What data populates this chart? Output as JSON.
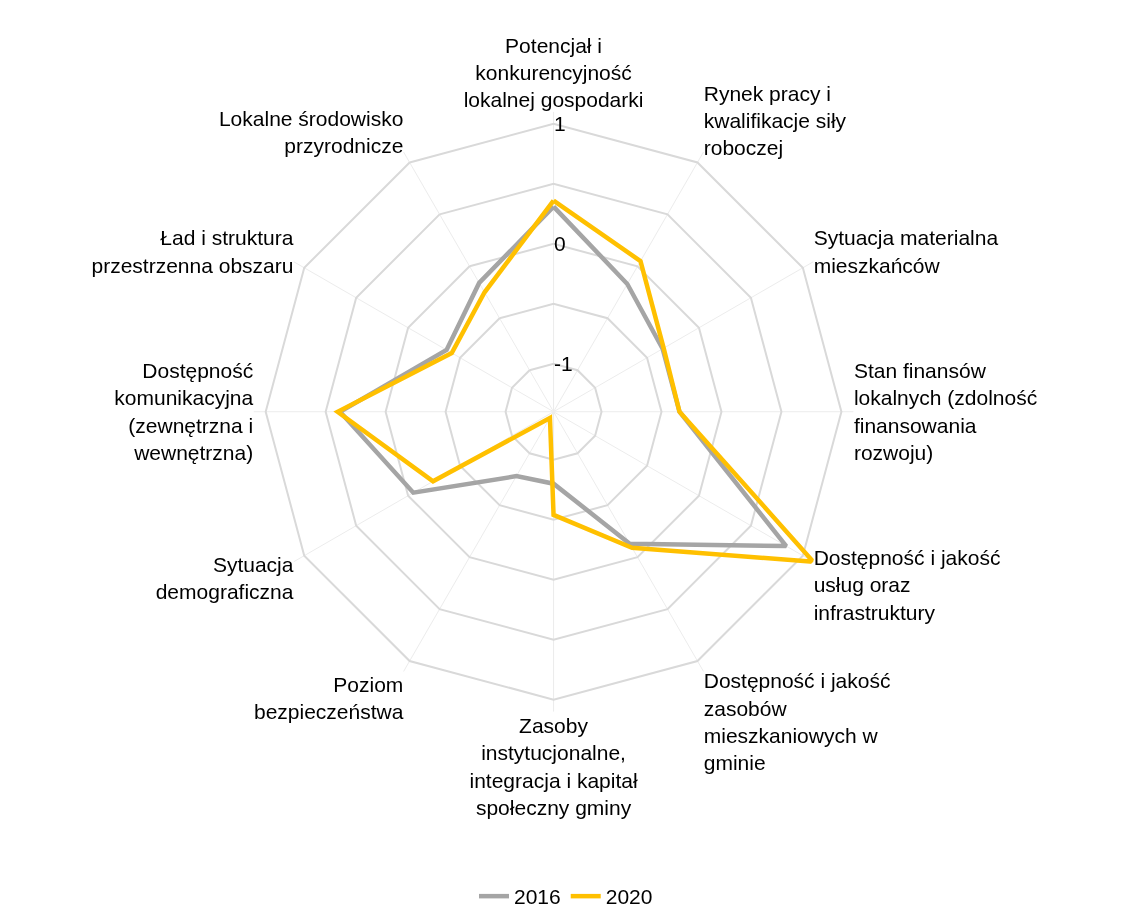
{
  "chart_data": {
    "type": "radar",
    "categories": [
      "Potencjał i konkurencyjność lokalnej gospodarki",
      "Rynek pracy i kwalifikacje siły roboczej",
      "Sytuacja materialna mieszkańców",
      "Stan finansów lokalnych (zdolność finansowania rozwoju)",
      "Dostępność i jakość usług oraz infrastruktury",
      "Dostępność i jakość zasobów mieszkaniowych w gminie",
      "Zasoby instytucjonalne, integracja i kapitał społeczny gminy",
      "Poziom bezpieczeństwa",
      "Sytuacja demograficzna",
      "Dostępność komunikacyjna (zewnętrzna i wewnętrzna)",
      "Ład i struktura przestrzenna obszaru",
      "Lokalne środowisko przyrodnicze"
    ],
    "series": [
      {
        "name": "2016",
        "color": "#a5a5a5",
        "values": [
          0.31,
          -0.17,
          -0.35,
          -0.35,
          0.84,
          -0.13,
          -0.8,
          -0.78,
          -0.05,
          0.38,
          -0.37,
          -0.16
        ]
      },
      {
        "name": "2020",
        "color": "#ffc000",
        "values": [
          0.36,
          0.05,
          -0.34,
          -0.35,
          1.1,
          -0.09,
          -0.54,
          -1.34,
          -0.24,
          0.4,
          -0.42,
          -0.25
        ]
      }
    ],
    "ylim": [
      -1.4,
      1.1
    ],
    "yticks": [
      -1,
      0,
      1
    ],
    "grid": true,
    "legend": "bottom",
    "marker": "none",
    "line_style": "solid"
  }
}
